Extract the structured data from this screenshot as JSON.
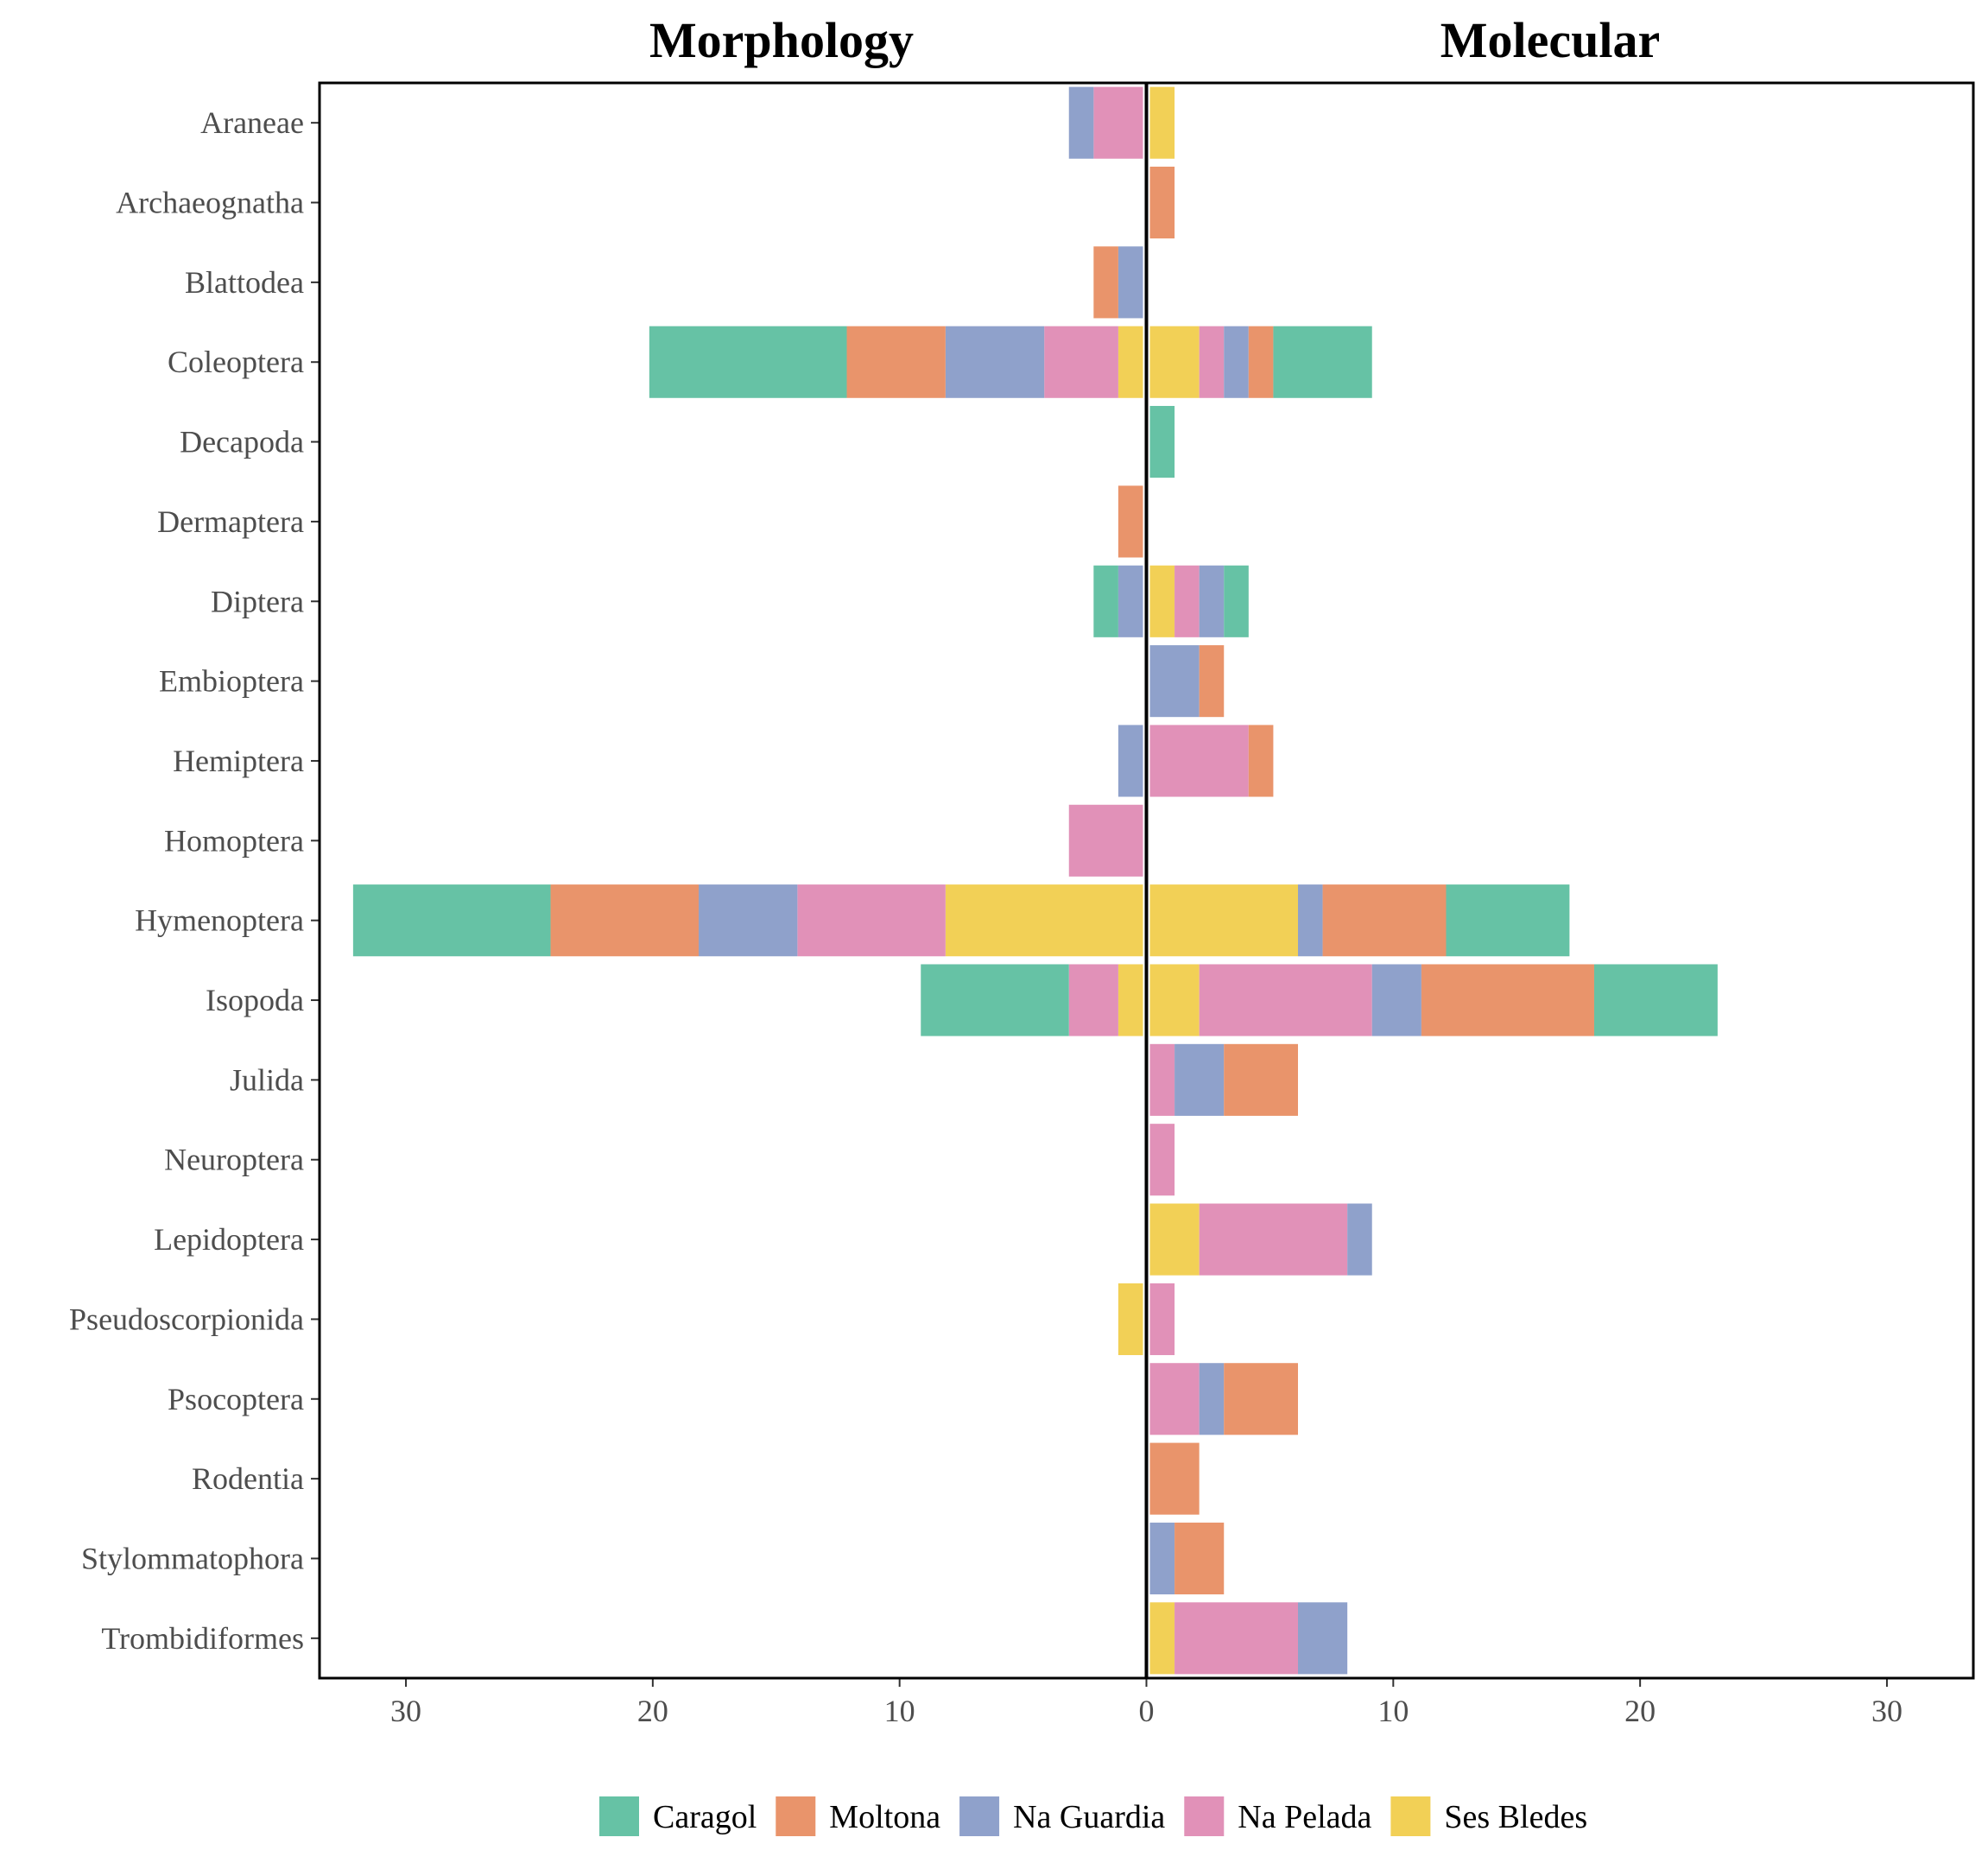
{
  "chart_data": {
    "type": "bar",
    "orientation": "horizontal-butterfly",
    "panels": [
      {
        "key": "morphology",
        "title": "Morphology"
      },
      {
        "key": "molecular",
        "title": "Molecular"
      }
    ],
    "categories": [
      "Araneae",
      "Archaeognatha",
      "Blattodea",
      "Coleoptera",
      "Decapoda",
      "Dermaptera",
      "Diptera",
      "Embioptera",
      "Hemiptera",
      "Homoptera",
      "Hymenoptera",
      "Isopoda",
      "Julida",
      "Neuroptera",
      "Lepidoptera",
      "Pseudoscorpionida",
      "Psocoptera",
      "Rodentia",
      "Stylommatophora",
      "Trombidiformes"
    ],
    "stack_order": [
      "Ses Bledes",
      "Na Pelada",
      "Na Guardia",
      "Moltona",
      "Caragol"
    ],
    "series": [
      {
        "name": "Caragol",
        "color": "#66c2a5",
        "morphology": [
          0,
          0,
          0,
          8,
          0,
          0,
          1,
          0,
          0,
          0,
          8,
          6,
          0,
          0,
          0,
          0,
          0,
          0,
          0,
          0
        ],
        "molecular": [
          0,
          0,
          0,
          4,
          1,
          0,
          1,
          0,
          0,
          0,
          5,
          5,
          0,
          0,
          0,
          0,
          0,
          0,
          0,
          0
        ]
      },
      {
        "name": "Moltona",
        "color": "#e9946b",
        "morphology": [
          0,
          0,
          1,
          4,
          0,
          1,
          0,
          0,
          0,
          0,
          6,
          0,
          0,
          0,
          0,
          0,
          0,
          0,
          0,
          0
        ],
        "molecular": [
          0,
          1,
          0,
          1,
          0,
          0,
          0,
          1,
          1,
          0,
          5,
          7,
          3,
          0,
          0,
          0,
          3,
          2,
          2,
          0
        ]
      },
      {
        "name": "Na Guardia",
        "color": "#8fa1cb",
        "morphology": [
          1,
          0,
          1,
          4,
          0,
          0,
          1,
          0,
          1,
          0,
          4,
          0,
          0,
          0,
          0,
          0,
          0,
          0,
          0,
          0
        ],
        "molecular": [
          0,
          0,
          0,
          1,
          0,
          0,
          1,
          2,
          0,
          0,
          1,
          2,
          2,
          0,
          1,
          0,
          1,
          0,
          1,
          2
        ]
      },
      {
        "name": "Na Pelada",
        "color": "#e191b8",
        "morphology": [
          2,
          0,
          0,
          3,
          0,
          0,
          0,
          0,
          0,
          3,
          6,
          2,
          0,
          0,
          0,
          0,
          0,
          0,
          0,
          0
        ],
        "molecular": [
          0,
          0,
          0,
          1,
          0,
          0,
          1,
          0,
          4,
          0,
          0,
          7,
          1,
          1,
          6,
          1,
          2,
          0,
          0,
          5
        ]
      },
      {
        "name": "Ses Bledes",
        "color": "#f2d056",
        "morphology": [
          0,
          0,
          0,
          1,
          0,
          0,
          0,
          0,
          0,
          0,
          8,
          1,
          0,
          0,
          0,
          1,
          0,
          0,
          0,
          0
        ],
        "molecular": [
          1,
          0,
          0,
          2,
          0,
          0,
          1,
          0,
          0,
          0,
          6,
          2,
          0,
          0,
          2,
          0,
          0,
          0,
          0,
          1
        ]
      }
    ],
    "xlim": [
      -33.5,
      33.5
    ],
    "xticks": [
      -30,
      -20,
      -10,
      0,
      10,
      20,
      30
    ],
    "xtick_labels": [
      "30",
      "20",
      "10",
      "0",
      "10",
      "20",
      "30"
    ],
    "legend": {
      "position": "bottom",
      "items": [
        "Caragol",
        "Moltona",
        "Na Guardia",
        "Na Pelada",
        "Ses Bledes"
      ]
    },
    "grid": false
  }
}
